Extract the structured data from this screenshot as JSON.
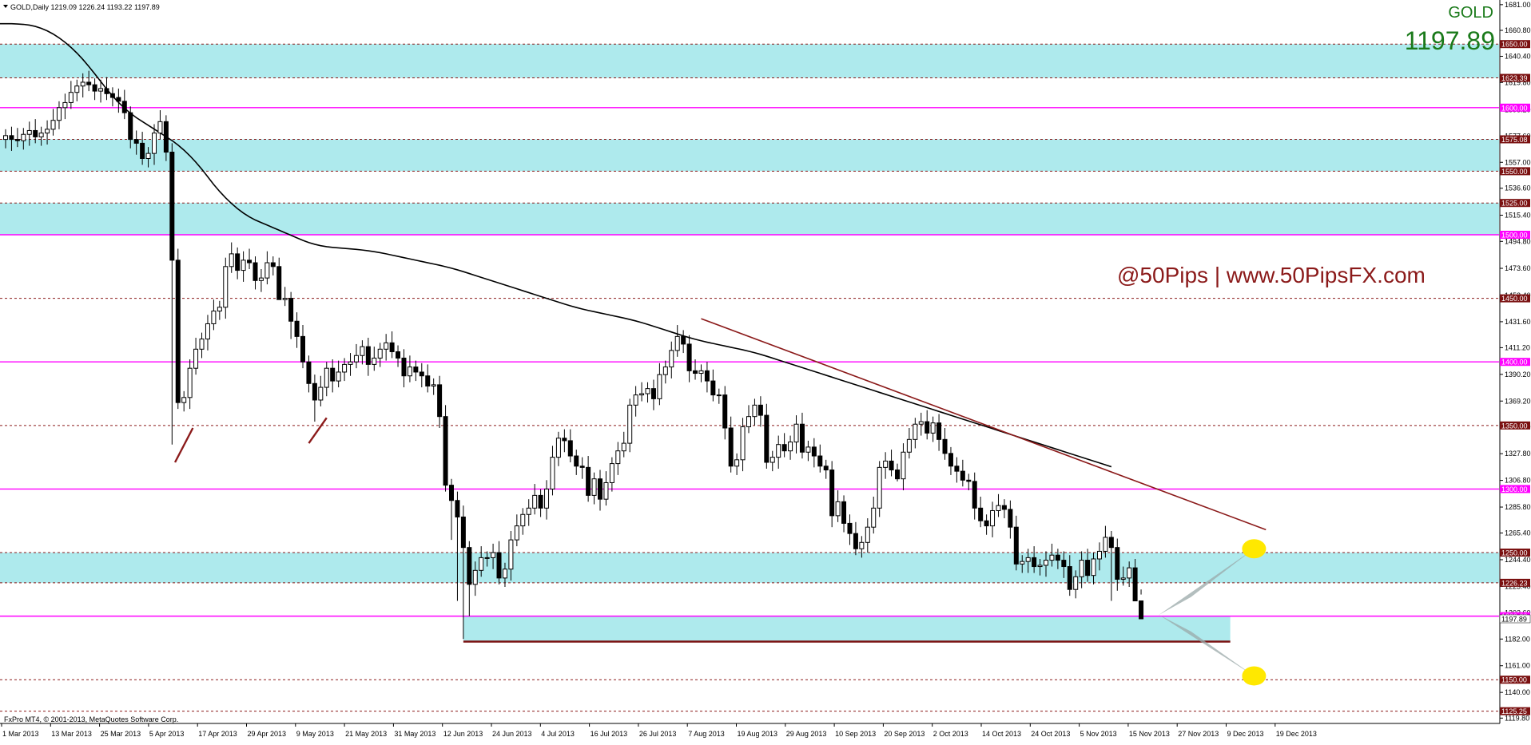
{
  "header": {
    "symbol_line": "GOLD,Daily  1219.09 1226.24 1193.22 1197.89",
    "symbol": "GOLD",
    "last_price": "1197.89",
    "watermark": "@50Pips | www.50PipsFX.com",
    "copyright": "FxPro MT4, © 2001-2013, MetaQuotes Software Corp."
  },
  "colors": {
    "zone_fill": "#aeeaed",
    "support_line": "#7a1010",
    "magenta_level": "#ff00ff",
    "dashed_level": "#8b1a1a",
    "moving_average": "#000000",
    "trendline": "#8b1a1a",
    "projection_fill": "#9aa8a8",
    "target_marker": "#ffe800",
    "price_text": "#1a7a1a",
    "watermark_text": "#8b1a1a"
  },
  "chart_data": {
    "type": "candlestick",
    "instrument": "GOLD",
    "timeframe": "Daily",
    "ohlc_last": {
      "open": 1219.09,
      "high": 1226.24,
      "low": 1193.22,
      "close": 1197.89
    },
    "ylim": [
      1113,
      1685
    ],
    "y_ticks": [
      "1681.00",
      "1660.80",
      "1640.40",
      "1619.80",
      "1598.20",
      "1577.60",
      "1557.00",
      "1536.60",
      "1515.40",
      "1494.80",
      "1473.60",
      "1452.40",
      "1431.60",
      "1411.20",
      "1390.20",
      "1369.20",
      "1348.80",
      "1327.80",
      "1306.80",
      "1285.80",
      "1265.40",
      "1244.40",
      "1223.40",
      "1202.60",
      "1182.00",
      "1161.00",
      "1140.00",
      "1119.80"
    ],
    "x_ticks": [
      "1 Mar 2013",
      "13 Mar 2013",
      "25 Mar 2013",
      "5 Apr 2013",
      "17 Apr 2013",
      "29 Apr 2013",
      "9 May 2013",
      "21 May 2013",
      "31 May 2013",
      "12 Jun 2013",
      "24 Jun 2013",
      "4 Jul 2013",
      "16 Jul 2013",
      "26 Jul 2013",
      "7 Aug 2013",
      "19 Aug 2013",
      "29 Aug 2013",
      "10 Sep 2013",
      "20 Sep 2013",
      "2 Oct 2013",
      "14 Oct 2013",
      "24 Oct 2013",
      "5 Nov 2013",
      "15 Nov 2013",
      "27 Nov 2013",
      "9 Dec 2013",
      "19 Dec 2013"
    ],
    "level_labels": [
      {
        "value": 1650,
        "label": "1650.00",
        "kind": "dashed"
      },
      {
        "value": 1623.39,
        "label": "1623.39",
        "kind": "dashed"
      },
      {
        "value": 1600,
        "label": "1600.00",
        "kind": "magenta"
      },
      {
        "value": 1575.08,
        "label": "1575.08",
        "kind": "dashed"
      },
      {
        "value": 1550,
        "label": "1550.00",
        "kind": "dashed"
      },
      {
        "value": 1525,
        "label": "1525.00",
        "kind": "dashed"
      },
      {
        "value": 1500,
        "label": "1500.00",
        "kind": "magenta"
      },
      {
        "value": 1450,
        "label": "1450.00",
        "kind": "dashed"
      },
      {
        "value": 1400,
        "label": "1400.00",
        "kind": "magenta"
      },
      {
        "value": 1350,
        "label": "1350.00",
        "kind": "dashed"
      },
      {
        "value": 1300,
        "label": "1300.00",
        "kind": "magenta"
      },
      {
        "value": 1250,
        "label": "1250.00",
        "kind": "dashed"
      },
      {
        "value": 1226.23,
        "label": "1226.23",
        "kind": "dashed"
      },
      {
        "value": 1200,
        "label": "1200.00",
        "kind": "magenta"
      },
      {
        "value": 1150,
        "label": "1150.00",
        "kind": "dashed"
      },
      {
        "value": 1125.25,
        "label": "1125.25",
        "kind": "dashed"
      }
    ],
    "price_label": {
      "value": 1197.89,
      "label": "1197.89"
    },
    "zones": [
      {
        "from": 1623.39,
        "to": 1650,
        "start_bar": 0,
        "end_bar": 216
      },
      {
        "from": 1550,
        "to": 1575.08,
        "start_bar": 0,
        "end_bar": 216
      },
      {
        "from": 1500,
        "to": 1525,
        "start_bar": 0,
        "end_bar": 216
      },
      {
        "from": 1226.23,
        "to": 1250,
        "start_bar": 0,
        "end_bar": 216
      },
      {
        "from": 1180,
        "to": 1200,
        "start_bar": 77,
        "end_bar": 206
      }
    ],
    "support_line": {
      "value": 1180,
      "start_bar": 77,
      "end_bar": 206
    },
    "trendline": {
      "bar1": 117,
      "price1": 1434,
      "bar2": 212,
      "price2": 1268
    },
    "hammer_marks": [
      {
        "bar1": 28.5,
        "price1": 1321,
        "bar2": 31.5,
        "price2": 1348
      },
      {
        "bar1": 51,
        "price1": 1336,
        "bar2": 54,
        "price2": 1356
      }
    ],
    "projection": {
      "apex_bar": 194,
      "apex_price": 1201,
      "up_bar": 210,
      "up_price": 1253,
      "down_bar": 210,
      "down_price": 1153,
      "upper_control_price": 1215,
      "lower_control_price": 1188
    },
    "targets": [
      {
        "bar": 210,
        "price": 1253
      },
      {
        "bar": 210,
        "price": 1153
      }
    ],
    "moving_average": {
      "start": 1666,
      "points": [
        0,
        0,
        -0.2,
        -0.3,
        -0.6,
        -1,
        -1.5,
        -2,
        -2.5,
        -3,
        -3.5,
        -4,
        -4.5,
        -5,
        -5.5,
        -5.8,
        -6,
        -6,
        -5.5,
        -5,
        -4.5,
        -4,
        -3.5,
        -3,
        -3,
        -3,
        -3,
        -3,
        -3,
        -3.5,
        -4,
        -4.5,
        -5,
        -5.5,
        -6,
        -6,
        -5.5,
        -5,
        -4.5,
        -4,
        -3.5,
        -3,
        -2.5,
        -2,
        -2,
        -2,
        -2,
        -2,
        -2,
        -2,
        -2,
        -1.7,
        -1.4,
        -1.1,
        -0.8,
        -0.5,
        -0.4,
        -0.4,
        -0.4,
        -0.4,
        -0.5,
        -0.6,
        -0.7,
        -0.8,
        -0.9,
        -1,
        -1,
        -1,
        -1,
        -1,
        -1,
        -1,
        -1,
        -1,
        -1.1,
        -1.2,
        -1.3,
        -1.4,
        -1.5,
        -1.5,
        -1.5,
        -1.5,
        -1.5,
        -1.5,
        -1.5,
        -1.5,
        -1.5,
        -1.5,
        -1.5,
        -1.5,
        -1.5,
        -1.5,
        -1.5,
        -1.5,
        -1.5,
        -1.4,
        -1.3,
        -1.2,
        -1.1,
        -1,
        -1,
        -1,
        -1,
        -1,
        -1,
        -1.1,
        -1.2,
        -1.3,
        -1.4,
        -1.5,
        -1.5,
        -1.5,
        -1.5,
        -1.5,
        -1.5,
        -1.4,
        -1.3,
        -1.2,
        -1.1,
        -1,
        -1,
        -1,
        -1,
        -1,
        -1,
        -1.1,
        -1.2,
        -1.3,
        -1.4,
        -1.5,
        -1.5,
        -1.5,
        -1.5,
        -1.5,
        -1.5,
        -1.5,
        -1.5,
        -1.5,
        -1.5,
        -1.5,
        -1.5,
        -1.5,
        -1.5,
        -1.5,
        -1.5,
        -1.5,
        -1.5,
        -1.5,
        -1.5,
        -1.5,
        -1.5,
        -1.5,
        -1.5,
        -1.5,
        -1.5,
        -1.5,
        -1.5,
        -1.5,
        -1.5,
        -1.5,
        -1.5,
        -1.5,
        -1.5,
        -1.5,
        -1.5,
        -1.5,
        -1.5,
        -1.5,
        -1.5,
        -1.5,
        -1.5,
        -1.5,
        -1.5,
        -1.5,
        -1.5,
        -1.5,
        -1.5,
        -1.5,
        -1.5,
        -1.5,
        -1.5,
        -1.5,
        -1.5,
        -1.5,
        -1.5,
        -1.5,
        -1.5
      ]
    },
    "closes": [
      1578,
      1575,
      1574,
      1579,
      1582,
      1577,
      1580,
      1583,
      1590,
      1600,
      1604,
      1612,
      1617,
      1620,
      1618,
      1613,
      1615,
      1611,
      1608,
      1605,
      1596,
      1575,
      1572,
      1560,
      1564,
      1580,
      1589,
      1565,
      1480,
      1368,
      1372,
      1395,
      1410,
      1418,
      1430,
      1440,
      1443,
      1475,
      1485,
      1472,
      1480,
      1478,
      1464,
      1466,
      1478,
      1475,
      1449,
      1450,
      1432,
      1420,
      1400,
      1383,
      1370,
      1380,
      1395,
      1385,
      1392,
      1398,
      1400,
      1405,
      1412,
      1398,
      1403,
      1410,
      1415,
      1408,
      1403,
      1389,
      1396,
      1392,
      1389,
      1381,
      1382,
      1357,
      1303,
      1291,
      1278,
      1254,
      1225,
      1236,
      1246,
      1246,
      1250,
      1230,
      1237,
      1260,
      1271,
      1280,
      1285,
      1295,
      1285,
      1300,
      1325,
      1340,
      1338,
      1326,
      1318,
      1317,
      1295,
      1308,
      1292,
      1305,
      1320,
      1330,
      1336,
      1366,
      1374,
      1375,
      1379,
      1371,
      1390,
      1396,
      1409,
      1420,
      1414,
      1393,
      1391,
      1393,
      1385,
      1374,
      1374,
      1348,
      1318,
      1323,
      1349,
      1357,
      1366,
      1358,
      1321,
      1325,
      1335,
      1330,
      1337,
      1351,
      1329,
      1333,
      1326,
      1318,
      1315,
      1279,
      1290,
      1273,
      1265,
      1253,
      1258,
      1270,
      1285,
      1317,
      1322,
      1315,
      1308,
      1329,
      1339,
      1351,
      1353,
      1344,
      1352,
      1339,
      1328,
      1318,
      1314,
      1307,
      1306,
      1285,
      1275,
      1271,
      1283,
      1287,
      1284,
      1270,
      1241,
      1243,
      1246,
      1239,
      1240,
      1244,
      1248,
      1244,
      1239,
      1221,
      1231,
      1244,
      1232,
      1245,
      1251,
      1262,
      1254,
      1229,
      1230,
      1238,
      1212,
      1197.89
    ],
    "lows": {
      "28": 1335,
      "46": 1470,
      "48": 1418,
      "52": 1353,
      "75": 1260,
      "76": 1212,
      "77": 1182,
      "78": 1200,
      "145": 1250,
      "150": 1306,
      "186": 1212,
      "190": 1223,
      "191": 1217,
      "196": 1193.22
    }
  }
}
